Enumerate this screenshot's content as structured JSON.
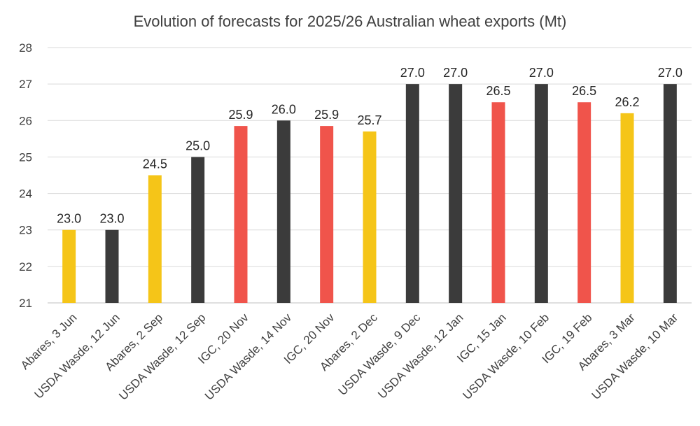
{
  "chart_data": {
    "type": "bar",
    "title": "Evolution of forecasts for 2025/26 Australian wheat exports (Mt)",
    "xlabel": "",
    "ylabel": "",
    "ylim": [
      21,
      28
    ],
    "yticks": [
      21,
      22,
      23,
      24,
      25,
      26,
      27,
      28
    ],
    "grid": true,
    "legend": "none",
    "categories": [
      "Abares, 3 Jun",
      "USDA Wasde, 12 Jun",
      "Abares, 2 Sep",
      "USDA Wasde, 12 Sep",
      "IGC, 20 Nov",
      "USDA Wasde, 14 Nov",
      "IGC, 20 Nov",
      "Abares, 2 Dec",
      "USDA Wasde, 9 Dec",
      "USDA Wasde, 12 Jan",
      "IGC, 15 Jan",
      "USDA Wasde, 10 Feb",
      "IGC, 19 Feb",
      "Abares, 3 Mar",
      "USDA Wasde, 10 Mar"
    ],
    "values": [
      23.0,
      23.0,
      24.5,
      25.0,
      25.85,
      26.0,
      25.85,
      25.7,
      27.0,
      27.0,
      26.5,
      27.0,
      26.5,
      26.2,
      27.0
    ],
    "data_labels": [
      "23.0",
      "23.0",
      "24.5",
      "25.0",
      "25.9",
      "26.0",
      "25.9",
      "25.7",
      "27.0",
      "27.0",
      "26.5",
      "27.0",
      "26.5",
      "26.2",
      "27.0"
    ],
    "bar_colors": [
      "#f5c518",
      "#3b3b3b",
      "#f5c518",
      "#3b3b3b",
      "#f0544b",
      "#3b3b3b",
      "#f0544b",
      "#f5c518",
      "#3b3b3b",
      "#3b3b3b",
      "#f0544b",
      "#3b3b3b",
      "#f0544b",
      "#f5c518",
      "#3b3b3b"
    ],
    "colors": {
      "abares": "#f5c518",
      "usda": "#3b3b3b",
      "igc": "#f0544b",
      "grid": "#d9d9d9",
      "axis": "#bfbfbf"
    }
  }
}
